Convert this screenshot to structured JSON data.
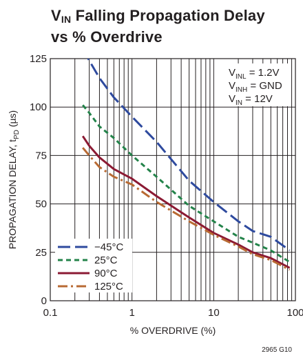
{
  "header": {
    "title_main": "V",
    "title_sub": "IN",
    "title_rest": " Falling Propagation Delay",
    "title_line2": "vs % Overdrive"
  },
  "figure_id": "2965 G10",
  "chart_data": {
    "type": "line",
    "title": "VIN Falling Propagation Delay vs % Overdrive",
    "xlabel": "% OVERDRIVE (%)",
    "ylabel": {
      "main": "PROPAGATION DELAY, t",
      "sub": "PD",
      "unit": " (µs)"
    },
    "x_scale": "log",
    "xlim": [
      0.1,
      100
    ],
    "ylim": [
      0,
      125
    ],
    "x_ticks": [
      0.1,
      1,
      10,
      100
    ],
    "x_tick_labels": [
      "0.1",
      "1",
      "10",
      "100"
    ],
    "y_ticks": [
      0,
      25,
      50,
      75,
      100,
      125
    ],
    "y_tick_labels": [
      "0",
      "25",
      "50",
      "75",
      "100",
      "125"
    ],
    "grid": true,
    "conditions": [
      {
        "main": "V",
        "sub": "INL",
        "rest": " = 1.2V"
      },
      {
        "main": "V",
        "sub": "INH",
        "rest": " = GND"
      },
      {
        "main": "V",
        "sub": "IN",
        "rest": " = 12V"
      }
    ],
    "legend_position": "bottom-left",
    "series": [
      {
        "name": "−45°C",
        "color": "#2e4a9e",
        "dash": "long-dash",
        "x": [
          0.25,
          0.3,
          0.4,
          0.6,
          1.0,
          2.0,
          5.0,
          10,
          20,
          30,
          50,
          85
        ],
        "y": [
          130,
          124,
          115,
          105,
          95,
          82,
          62,
          51,
          41,
          36,
          33,
          26
        ]
      },
      {
        "name": "25°C",
        "color": "#23834a",
        "dash": "short-dash",
        "x": [
          0.25,
          0.3,
          0.4,
          0.6,
          1.0,
          2.0,
          5.0,
          10,
          20,
          30,
          50,
          85
        ],
        "y": [
          101,
          97,
          90,
          84,
          75,
          64,
          49,
          41,
          33,
          30,
          26,
          20
        ]
      },
      {
        "name": "90°C",
        "color": "#8b1a33",
        "dash": "solid",
        "x": [
          0.25,
          0.3,
          0.4,
          0.6,
          1.0,
          2.0,
          5.0,
          10,
          20,
          30,
          50,
          85
        ],
        "y": [
          85,
          80,
          74,
          68,
          63,
          54,
          43,
          35,
          29,
          25,
          22,
          17
        ]
      },
      {
        "name": "125°C",
        "color": "#b86a33",
        "dash": "dash-dot",
        "x": [
          0.25,
          0.3,
          0.4,
          0.6,
          1.0,
          2.0,
          5.0,
          10,
          20,
          30,
          50,
          85
        ],
        "y": [
          79,
          75,
          69,
          64,
          60,
          51,
          41,
          34,
          28,
          24,
          21,
          16
        ]
      }
    ]
  }
}
